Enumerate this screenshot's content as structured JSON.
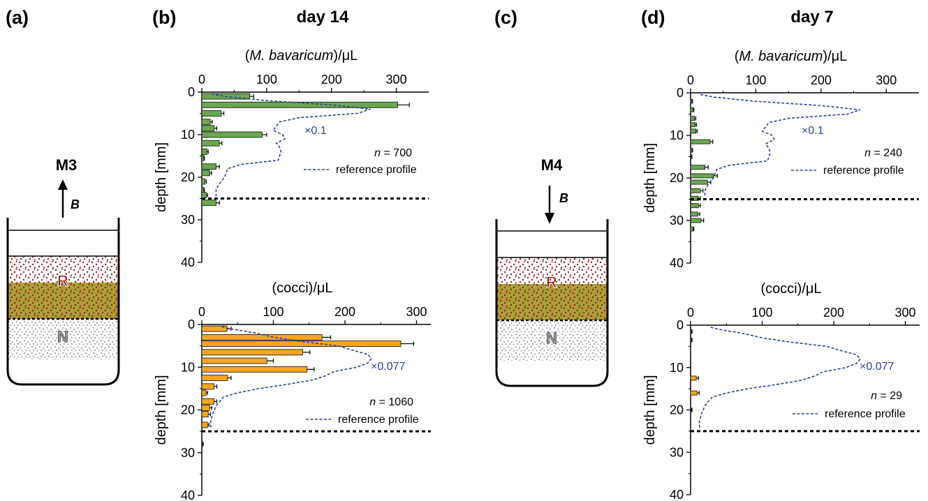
{
  "labels": {
    "a": "(a)",
    "b": "(b)",
    "c": "(c)",
    "d": "(d)"
  },
  "titles": {
    "b": "day 14",
    "d": "day 7"
  },
  "beakers": {
    "left": {
      "name": "M3",
      "field": "B",
      "direction": "up",
      "layer_r": "R",
      "layer_n": "N"
    },
    "right": {
      "name": "M4",
      "field": "B",
      "direction": "down",
      "layer_r": "R",
      "layer_n": "N"
    }
  },
  "colors": {
    "mbav": "#6aa84f",
    "cocci": "#f6a623",
    "reference": "#2b3fa0",
    "r_layer": "#a9a13a",
    "red_dots": "#9b1c1c",
    "n_dots": "#a0a0a0"
  },
  "chart_data": [
    {
      "id": "b-top",
      "type": "bar",
      "orientation": "horizontal",
      "xlabel_pre": "(",
      "xlabel_italic": "M. bavaricum",
      "xlabel_post": ")/μL",
      "ylabel": "depth [mm]",
      "xlim": [
        0,
        350
      ],
      "ylim": [
        0,
        40
      ],
      "xticks": [
        0,
        100,
        200,
        300
      ],
      "yticks": [
        0,
        10,
        20,
        30,
        40
      ],
      "n_label": "n",
      "n_value": "= 700",
      "scale_label": "×0.1",
      "legend_label": "reference profile",
      "boundary_depth": 25,
      "bars": [
        {
          "depth": 1,
          "value": 74,
          "err": 6
        },
        {
          "depth": 3,
          "value": 302,
          "err": 18
        },
        {
          "depth": 5,
          "value": 30,
          "err": 4
        },
        {
          "depth": 7,
          "value": 13,
          "err": 3
        },
        {
          "depth": 8.5,
          "value": 19,
          "err": 4
        },
        {
          "depth": 10,
          "value": 93,
          "err": 7
        },
        {
          "depth": 12,
          "value": 27,
          "err": 4
        },
        {
          "depth": 14,
          "value": 8,
          "err": 2
        },
        {
          "depth": 15.5,
          "value": 3,
          "err": 1
        },
        {
          "depth": 17.5,
          "value": 22,
          "err": 5
        },
        {
          "depth": 19,
          "value": 12,
          "err": 3
        },
        {
          "depth": 21,
          "value": 5,
          "err": 2
        },
        {
          "depth": 23,
          "value": 3,
          "err": 1
        },
        {
          "depth": 24.2,
          "value": 7,
          "err": 2
        },
        {
          "depth": 26,
          "value": 22,
          "err": 5
        }
      ],
      "reference": [
        [
          15,
          0.4
        ],
        [
          35,
          1
        ],
        [
          100,
          2
        ],
        [
          200,
          3
        ],
        [
          260,
          4
        ],
        [
          240,
          5
        ],
        [
          150,
          6
        ],
        [
          120,
          7
        ],
        [
          115,
          8
        ],
        [
          110,
          9
        ],
        [
          125,
          10
        ],
        [
          128,
          11
        ],
        [
          115,
          12
        ],
        [
          120,
          13
        ],
        [
          122,
          14
        ],
        [
          118,
          16
        ],
        [
          60,
          17
        ],
        [
          40,
          18
        ],
        [
          35,
          20
        ],
        [
          25,
          22
        ],
        [
          22,
          23
        ],
        [
          22,
          24.5
        ]
      ]
    },
    {
      "id": "b-bottom",
      "type": "bar",
      "orientation": "horizontal",
      "xlabel_pre": "(cocci)/μL",
      "xlabel_italic": "",
      "xlabel_post": "",
      "ylabel": "depth [mm]",
      "xlim": [
        0,
        320
      ],
      "ylim": [
        0,
        40
      ],
      "xticks": [
        0,
        100,
        200,
        300
      ],
      "yticks": [
        0,
        10,
        20,
        30,
        40
      ],
      "n_label": "n",
      "n_value": "= 1060",
      "scale_label": "×0.077",
      "legend_label": "reference profile",
      "boundary_depth": 25,
      "bars": [
        {
          "depth": 1,
          "value": 35,
          "err": 6
        },
        {
          "depth": 3,
          "value": 168,
          "err": 12
        },
        {
          "depth": 4.5,
          "value": 278,
          "err": 18
        },
        {
          "depth": 6.5,
          "value": 141,
          "err": 10
        },
        {
          "depth": 8.5,
          "value": 91,
          "err": 9
        },
        {
          "depth": 10.5,
          "value": 147,
          "err": 10
        },
        {
          "depth": 12.5,
          "value": 36,
          "err": 5
        },
        {
          "depth": 14.5,
          "value": 17,
          "err": 4
        },
        {
          "depth": 16,
          "value": 6,
          "err": 2
        },
        {
          "depth": 18,
          "value": 17,
          "err": 4
        },
        {
          "depth": 19.5,
          "value": 11,
          "err": 3
        },
        {
          "depth": 21,
          "value": 9,
          "err": 3
        },
        {
          "depth": 23.5,
          "value": 8,
          "err": 2
        },
        {
          "depth": 28,
          "value": 1,
          "err": 1
        }
      ],
      "reference": [
        [
          28,
          0.5
        ],
        [
          40,
          1
        ],
        [
          75,
          2
        ],
        [
          100,
          3
        ],
        [
          140,
          4
        ],
        [
          190,
          5
        ],
        [
          210,
          6
        ],
        [
          232,
          7
        ],
        [
          237,
          8
        ],
        [
          232,
          9
        ],
        [
          217,
          10
        ],
        [
          185,
          11
        ],
        [
          173,
          12
        ],
        [
          155,
          13
        ],
        [
          120,
          14
        ],
        [
          80,
          15
        ],
        [
          50,
          16
        ],
        [
          30,
          17
        ],
        [
          20,
          19
        ],
        [
          15,
          21
        ],
        [
          12,
          23
        ],
        [
          13,
          24.5
        ]
      ]
    },
    {
      "id": "d-top",
      "type": "bar",
      "orientation": "horizontal",
      "xlabel_pre": "(",
      "xlabel_italic": "M. bavaricum",
      "xlabel_post": ")/μL",
      "ylabel": "depth [mm]",
      "xlim": [
        0,
        350
      ],
      "ylim": [
        0,
        40
      ],
      "xticks": [
        0,
        100,
        200,
        300
      ],
      "yticks": [
        0,
        10,
        20,
        30,
        40
      ],
      "n_label": "n",
      "n_value": "= 240",
      "scale_label": "×0.1",
      "legend_label": "reference profile",
      "boundary_depth": 25,
      "bars": [
        {
          "depth": 2,
          "value": 2,
          "err": 1
        },
        {
          "depth": 4,
          "value": 4,
          "err": 1
        },
        {
          "depth": 6,
          "value": 6,
          "err": 2
        },
        {
          "depth": 7.5,
          "value": 7,
          "err": 2
        },
        {
          "depth": 9,
          "value": 8,
          "err": 2
        },
        {
          "depth": 11.5,
          "value": 30,
          "err": 4
        },
        {
          "depth": 13.5,
          "value": 2,
          "err": 1
        },
        {
          "depth": 15,
          "value": 1,
          "err": 1
        },
        {
          "depth": 17.5,
          "value": 22,
          "err": 5
        },
        {
          "depth": 19.5,
          "value": 35,
          "err": 6
        },
        {
          "depth": 21,
          "value": 26,
          "err": 5
        },
        {
          "depth": 23,
          "value": 15,
          "err": 4
        },
        {
          "depth": 24.8,
          "value": 12,
          "err": 3
        },
        {
          "depth": 26.5,
          "value": 12,
          "err": 3
        },
        {
          "depth": 28.5,
          "value": 11,
          "err": 3
        },
        {
          "depth": 30,
          "value": 16,
          "err": 4
        },
        {
          "depth": 32,
          "value": 4,
          "err": 1
        }
      ],
      "reference": [
        [
          15,
          0.4
        ],
        [
          35,
          1
        ],
        [
          100,
          2
        ],
        [
          200,
          3
        ],
        [
          260,
          4
        ],
        [
          240,
          5
        ],
        [
          150,
          6
        ],
        [
          120,
          7
        ],
        [
          115,
          8
        ],
        [
          110,
          9
        ],
        [
          125,
          10
        ],
        [
          128,
          11
        ],
        [
          115,
          12
        ],
        [
          120,
          13
        ],
        [
          122,
          14
        ],
        [
          118,
          16
        ],
        [
          60,
          17
        ],
        [
          40,
          18
        ],
        [
          35,
          20
        ],
        [
          25,
          22
        ],
        [
          22,
          23
        ],
        [
          22,
          24.5
        ]
      ]
    },
    {
      "id": "d-bottom",
      "type": "bar",
      "orientation": "horizontal",
      "xlabel_pre": "(cocci)/μL",
      "xlabel_italic": "",
      "xlabel_post": "",
      "ylabel": "depth [mm]",
      "xlim": [
        0,
        320
      ],
      "ylim": [
        0,
        40
      ],
      "xticks": [
        0,
        100,
        200,
        300
      ],
      "yticks": [
        0,
        10,
        20,
        30,
        40
      ],
      "n_label": "n",
      "n_value": "= 29",
      "scale_label": "×0.077",
      "legend_label": "reference profile",
      "boundary_depth": 25,
      "bars": [
        {
          "depth": 1.5,
          "value": 1,
          "err": 1
        },
        {
          "depth": 3.5,
          "value": 1,
          "err": 1
        },
        {
          "depth": 12.5,
          "value": 8,
          "err": 3
        },
        {
          "depth": 16,
          "value": 9,
          "err": 3
        },
        {
          "depth": 20,
          "value": 1,
          "err": 1
        }
      ],
      "reference": [
        [
          28,
          0.5
        ],
        [
          40,
          1
        ],
        [
          75,
          2
        ],
        [
          100,
          3
        ],
        [
          140,
          4
        ],
        [
          190,
          5
        ],
        [
          210,
          6
        ],
        [
          232,
          7
        ],
        [
          237,
          8
        ],
        [
          232,
          9
        ],
        [
          217,
          10
        ],
        [
          185,
          11
        ],
        [
          173,
          12
        ],
        [
          155,
          13
        ],
        [
          120,
          14
        ],
        [
          80,
          15
        ],
        [
          50,
          16
        ],
        [
          30,
          17
        ],
        [
          20,
          19
        ],
        [
          15,
          21
        ],
        [
          12,
          23
        ],
        [
          13,
          24.5
        ]
      ]
    }
  ]
}
